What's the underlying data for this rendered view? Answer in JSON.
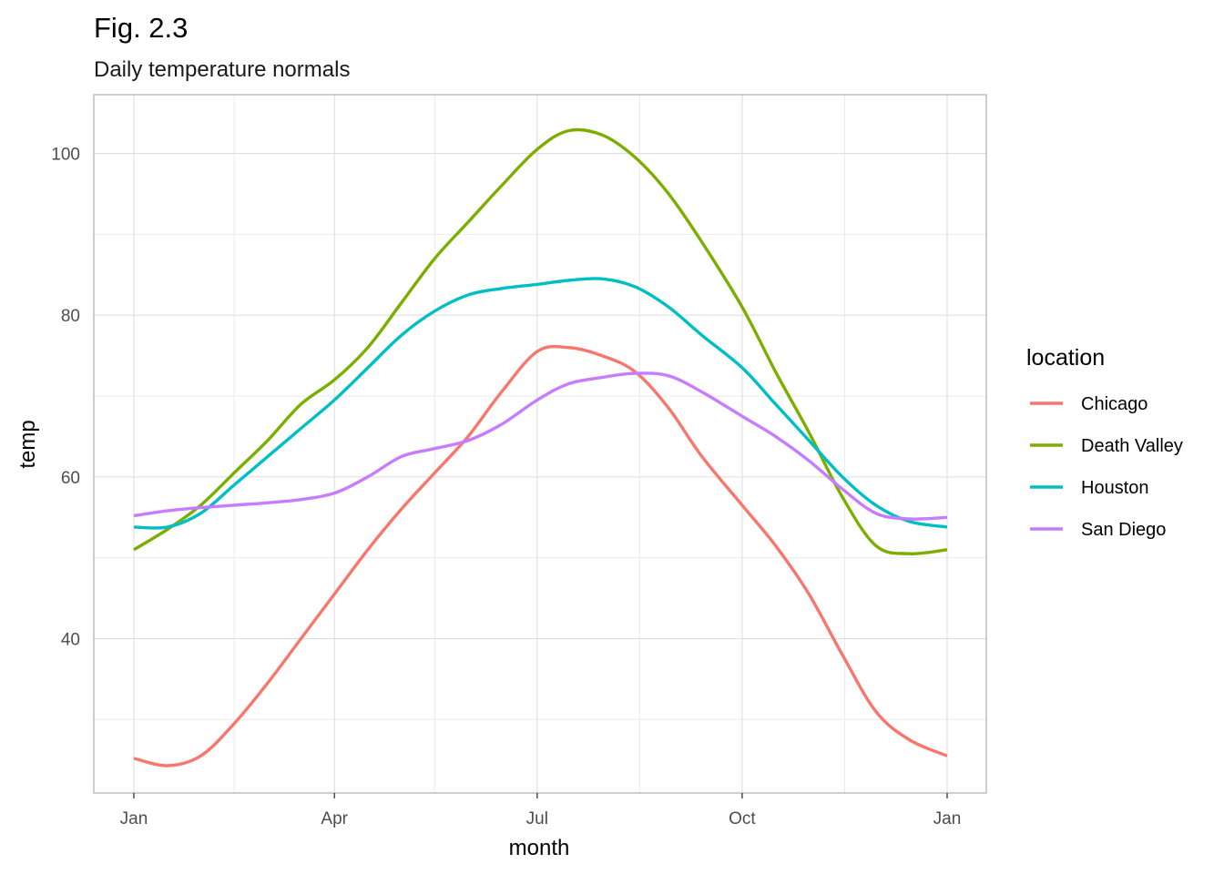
{
  "chart_data": {
    "type": "line",
    "title": "Fig. 2.3",
    "subtitle": "Daily temperature normals",
    "xlabel": "month",
    "ylabel": "temp",
    "x_ticks": [
      "Jan",
      "Apr",
      "Jul",
      "Oct",
      "Jan"
    ],
    "y_ticks": [
      40,
      60,
      80,
      100
    ],
    "xlim": [
      0,
      366
    ],
    "ylim": [
      21,
      107.5
    ],
    "grid": true,
    "legend": {
      "title": "location",
      "placement": "right"
    },
    "x_note": "x values are day of year starting Jan 1 (0 = Jan, 90 = Apr, 181 = Jul, 273 = Oct, 365 = following Jan)",
    "series": [
      {
        "name": "Chicago",
        "color": "#F8766D",
        "x": [
          0,
          15,
          30,
          45,
          60,
          75,
          90,
          105,
          120,
          135,
          150,
          165,
          181,
          195,
          210,
          225,
          240,
          255,
          273,
          288,
          303,
          318,
          333,
          348,
          365
        ],
        "y": [
          25.2,
          24.3,
          25.5,
          29.5,
          34.5,
          40.0,
          45.5,
          51.0,
          56.0,
          60.5,
          65.0,
          70.5,
          75.5,
          76.0,
          75.0,
          73.0,
          68.5,
          62.5,
          56.5,
          51.5,
          45.5,
          38.0,
          31.0,
          27.5,
          25.5
        ]
      },
      {
        "name": "Death Valley",
        "color": "#7CAE00",
        "x": [
          0,
          15,
          30,
          45,
          60,
          75,
          90,
          105,
          120,
          135,
          150,
          165,
          181,
          195,
          210,
          225,
          240,
          255,
          273,
          288,
          303,
          318,
          333,
          348,
          365
        ],
        "y": [
          51.0,
          53.5,
          56.5,
          60.5,
          64.5,
          69.0,
          72.0,
          76.0,
          81.5,
          87.0,
          91.5,
          96.0,
          100.5,
          102.8,
          102.3,
          99.5,
          95.0,
          89.0,
          81.0,
          73.0,
          65.5,
          57.5,
          51.5,
          50.5,
          51.0
        ]
      },
      {
        "name": "Houston",
        "color": "#00BFC4",
        "x": [
          0,
          15,
          30,
          45,
          60,
          75,
          90,
          105,
          120,
          135,
          150,
          165,
          181,
          195,
          210,
          225,
          240,
          255,
          273,
          288,
          303,
          318,
          333,
          348,
          365
        ],
        "y": [
          53.8,
          53.8,
          55.5,
          59.0,
          62.5,
          66.0,
          69.5,
          73.5,
          77.5,
          80.5,
          82.5,
          83.3,
          83.8,
          84.3,
          84.5,
          83.5,
          81.0,
          77.5,
          73.5,
          69.0,
          64.5,
          60.0,
          56.5,
          54.5,
          53.8
        ]
      },
      {
        "name": "San Diego",
        "color": "#C77CFF",
        "x": [
          0,
          15,
          30,
          45,
          60,
          75,
          90,
          105,
          120,
          135,
          150,
          165,
          181,
          195,
          210,
          225,
          240,
          255,
          273,
          288,
          303,
          318,
          333,
          348,
          365
        ],
        "y": [
          55.2,
          55.8,
          56.2,
          56.5,
          56.8,
          57.2,
          58.0,
          60.0,
          62.5,
          63.5,
          64.5,
          66.5,
          69.5,
          71.5,
          72.3,
          72.8,
          72.5,
          70.5,
          67.5,
          65.0,
          62.0,
          58.5,
          55.5,
          54.8,
          55.0
        ]
      }
    ]
  }
}
